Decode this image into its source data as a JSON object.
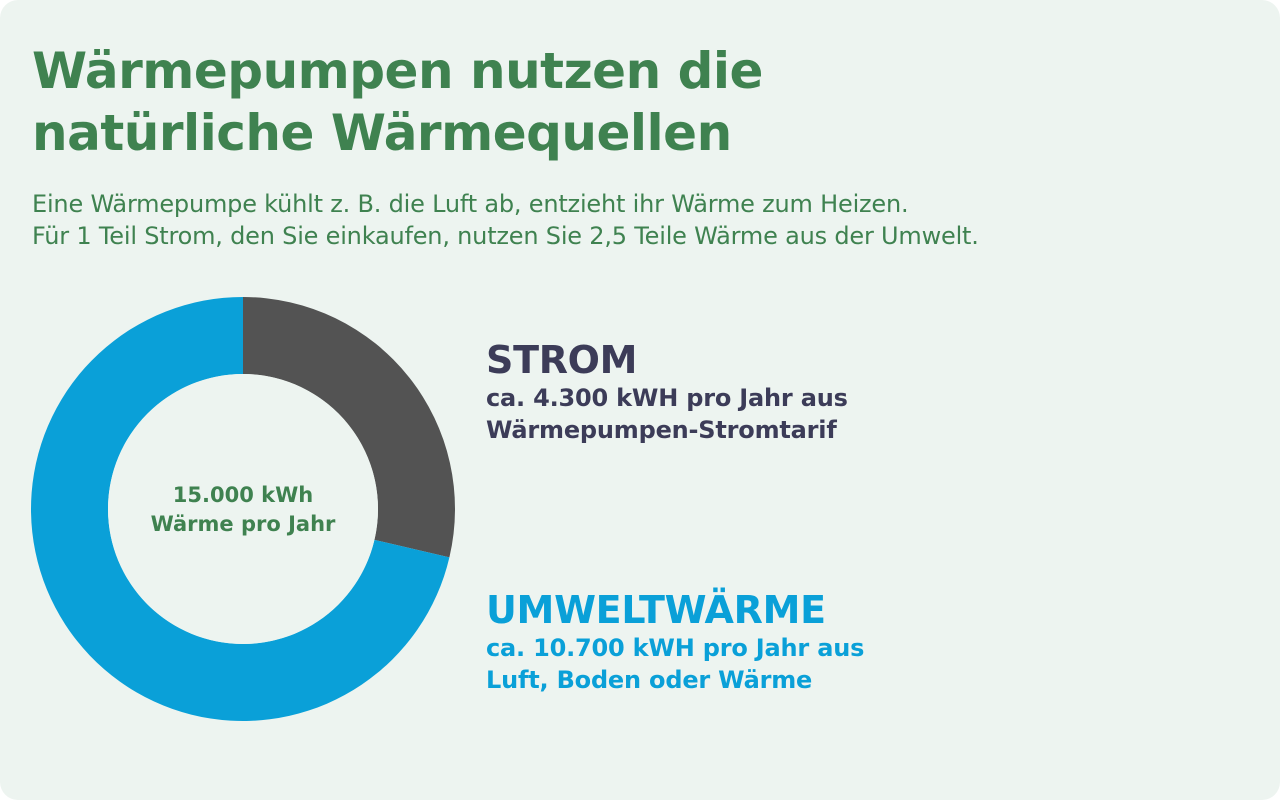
{
  "colors": {
    "heading": "#3f8250",
    "strom": "#535353",
    "strom_text": "#3c3c58",
    "umwelt": "#0aa0d8",
    "background": "#edf4f0"
  },
  "header": {
    "title_lines": [
      "Wärmepumpen nutzen die",
      "natürliche Wärmequellen"
    ],
    "subtitle_lines": [
      "Eine Wärmepumpe kühlt z. B. die Luft ab, entzieht ihr Wärme zum Heizen.",
      "Für 1 Teil Strom, den Sie einkaufen, nutzen Sie 2,5 Teile Wärme aus der Umwelt."
    ]
  },
  "chart_data": {
    "type": "pie",
    "variant": "donut",
    "center_label_lines": [
      "15.000 kWh",
      "Wärme pro Jahr"
    ],
    "series": [
      {
        "name": "STROM",
        "value": 4300,
        "color": "#535353",
        "description_lines": [
          "ca. 4.300 kWH pro Jahr aus",
          "Wärmepumpen-Stromtarif"
        ]
      },
      {
        "name": "UMWELTWÄRME",
        "value": 10700,
        "color": "#0aa0d8",
        "description_lines": [
          "ca. 10.700 kWH pro Jahr aus",
          "Luft, Boden oder Wärme"
        ]
      }
    ],
    "start": "top",
    "direction": "clockwise",
    "legend": "right"
  }
}
